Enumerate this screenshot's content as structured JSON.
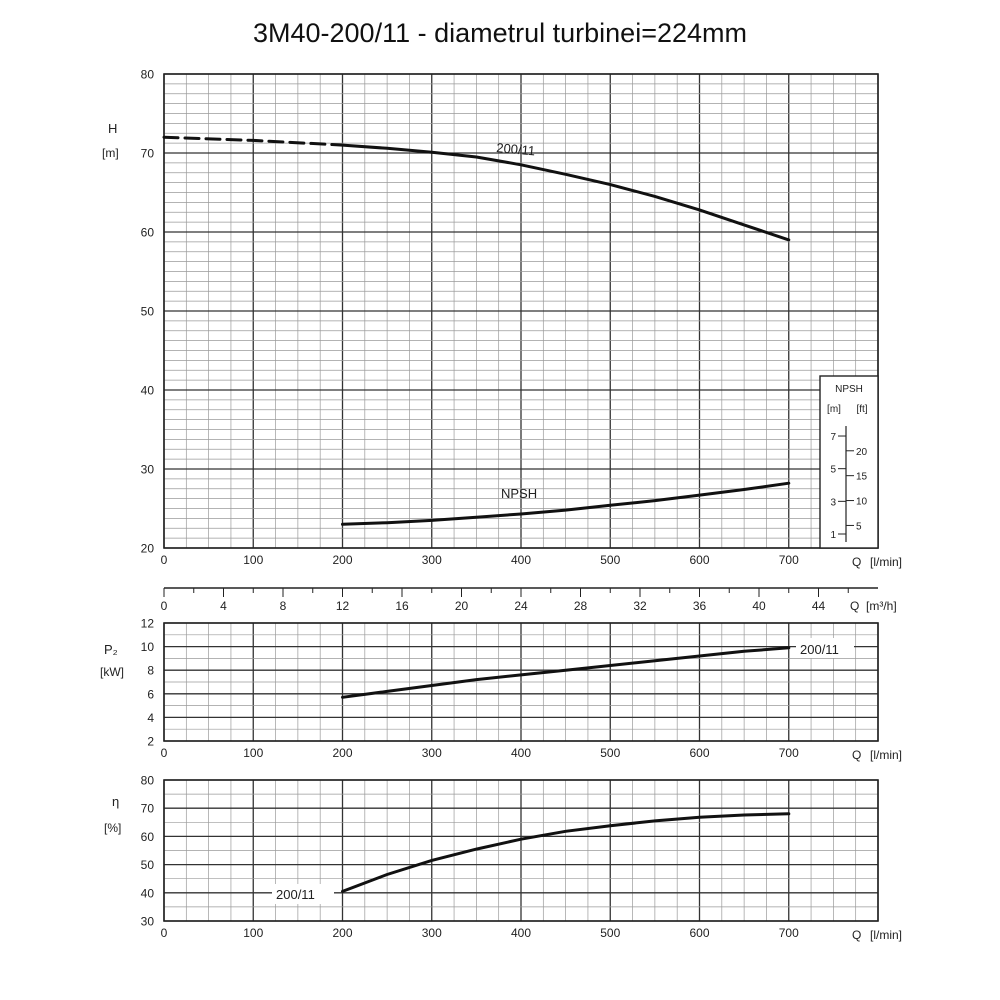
{
  "title": "3M40-200/11 - diametrul turbinei=224mm",
  "chart_data": [
    {
      "type": "line",
      "id": "head",
      "ylabel": "H",
      "yunit": "[m]",
      "xlabel": "Q",
      "xunit": "[l/min]",
      "xlabel2": "Q",
      "xunit2": "[m³/h]",
      "xlim": [
        0,
        800
      ],
      "ylim": [
        20,
        80
      ],
      "xticks": [
        0,
        100,
        200,
        300,
        400,
        500,
        600,
        700
      ],
      "yticks": [
        20,
        30,
        40,
        50,
        60,
        70,
        80
      ],
      "xticks2": [
        "0",
        "4",
        "8",
        "12",
        "16",
        "20",
        "24",
        "28",
        "32",
        "36",
        "40",
        "44"
      ],
      "grid": true,
      "series": [
        {
          "name": "200/11",
          "x": [
            0,
            100,
            200
          ],
          "y": [
            72.0,
            71.6,
            71.0
          ],
          "style": "dashed"
        },
        {
          "name": "200/11",
          "x": [
            200,
            250,
            300,
            350,
            400,
            450,
            500,
            550,
            600,
            650,
            700
          ],
          "y": [
            71.0,
            70.6,
            70.1,
            69.5,
            68.5,
            67.3,
            66.0,
            64.5,
            62.8,
            60.9,
            59.0
          ],
          "style": "solid"
        },
        {
          "name": "NPSH",
          "x": [
            200,
            250,
            300,
            350,
            400,
            450,
            500,
            550,
            600,
            650,
            700
          ],
          "y": [
            23.0,
            23.2,
            23.5,
            23.9,
            24.3,
            24.8,
            25.4,
            26.0,
            26.7,
            27.4,
            28.2
          ],
          "style": "solid"
        }
      ],
      "npsh_inset": {
        "header": "NPSH",
        "units": [
          "[m]",
          "[ft]"
        ],
        "m_ticks": [
          1,
          3,
          5,
          7
        ],
        "ft_ticks": [
          5,
          10,
          15,
          20
        ]
      }
    },
    {
      "type": "line",
      "id": "power",
      "ylabel": "P₂",
      "yunit": "[kW]",
      "xlabel": "Q",
      "xunit": "[l/min]",
      "xlim": [
        0,
        800
      ],
      "ylim": [
        2,
        12
      ],
      "xticks": [
        0,
        100,
        200,
        300,
        400,
        500,
        600,
        700
      ],
      "yticks": [
        2,
        4,
        6,
        8,
        10,
        12
      ],
      "grid": true,
      "series": [
        {
          "name": "200/11",
          "x": [
            200,
            250,
            300,
            350,
            400,
            450,
            500,
            550,
            600,
            650,
            700
          ],
          "y": [
            5.7,
            6.2,
            6.7,
            7.2,
            7.6,
            8.0,
            8.4,
            8.8,
            9.2,
            9.6,
            9.9
          ]
        }
      ]
    },
    {
      "type": "line",
      "id": "efficiency",
      "ylabel": "η",
      "yunit": "[%]",
      "xlabel": "Q",
      "xunit": "[l/min]",
      "xlim": [
        0,
        800
      ],
      "ylim": [
        30,
        80
      ],
      "xticks": [
        0,
        100,
        200,
        300,
        400,
        500,
        600,
        700
      ],
      "yticks": [
        30,
        40,
        50,
        60,
        70,
        80
      ],
      "grid": true,
      "series": [
        {
          "name": "200/11",
          "x": [
            200,
            250,
            300,
            350,
            400,
            450,
            500,
            550,
            600,
            650,
            700
          ],
          "y": [
            40.5,
            46.5,
            51.5,
            55.5,
            59.0,
            61.8,
            63.8,
            65.5,
            66.8,
            67.6,
            68.0
          ]
        }
      ]
    }
  ]
}
